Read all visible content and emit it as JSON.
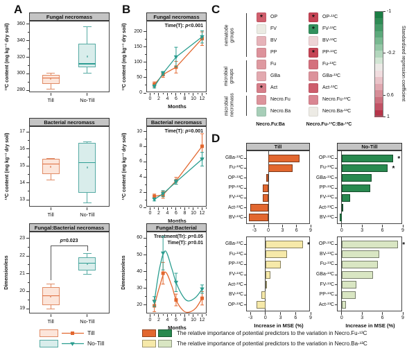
{
  "panels": {
    "a": "A",
    "b": "B",
    "c": "C",
    "d": "D"
  },
  "colors": {
    "title_bar_bg": "#c4c4c4",
    "line": {
      "Till": "#e2672f",
      "No-Till": "#2a9d8f"
    },
    "box": {
      "Till": {
        "fill": "#fce5da",
        "stroke": "#e08a64",
        "median": "#de6a3a"
      },
      "No-Till": {
        "fill": "#d9edeb",
        "stroke": "#55aaa3",
        "median": "#2f9e94"
      }
    }
  },
  "chart_data": [
    {
      "id": "a1",
      "type": "box",
      "title": "Fungal necromass",
      "ylabel": "¹³C content (mg kg⁻¹ dry soil)",
      "ylim": [
        277,
        363
      ],
      "yticks": [
        280,
        300,
        320,
        340,
        360
      ],
      "yminor": [
        290,
        310,
        330,
        350
      ],
      "categories": [
        "Till",
        "No-Till"
      ],
      "boxes": [
        {
          "lo": 282,
          "q1": 288,
          "med": 295,
          "q3": 298.5,
          "hi": 301,
          "mean": 293.5
        },
        {
          "lo": 301,
          "q1": 308,
          "med": 312,
          "q3": 336,
          "hi": 357,
          "mean": 321
        }
      ]
    },
    {
      "id": "a2",
      "type": "box",
      "title": "Bacterial necromass",
      "ylabel": "¹³C content (mg kg⁻¹ dry soil)",
      "ylim": [
        12.55,
        17.3
      ],
      "yticks": [
        13,
        14,
        15,
        16,
        17
      ],
      "yminor": [
        13.5,
        14.5,
        15.5,
        16.5
      ],
      "categories": [
        "Till",
        "No-Till"
      ],
      "boxes": [
        {
          "lo": 14.15,
          "q1": 14.5,
          "med": 15.1,
          "q3": 15.4,
          "hi": 15.45,
          "mean": 14.95
        },
        {
          "lo": 12.8,
          "q1": 13.4,
          "med": 15.2,
          "q3": 16.35,
          "hi": 16.4,
          "mean": 14.9
        }
      ]
    },
    {
      "id": "a3",
      "type": "box",
      "title": "Fungal:Bacterial necromass",
      "ylabel": "Dimensionless",
      "ylim": [
        18.7,
        23.35
      ],
      "yticks": [
        19,
        20,
        21,
        22,
        23
      ],
      "yminor": [
        19.5,
        20.5,
        21.5,
        22.5
      ],
      "categories": [
        "Till",
        "No-Till"
      ],
      "boxes": [
        {
          "lo": 19.0,
          "q1": 19.2,
          "med": 19.75,
          "q3": 20.25,
          "hi": 20.4,
          "mean": 19.7
        },
        {
          "lo": 20.95,
          "q1": 21.2,
          "med": 21.6,
          "q3": 21.95,
          "hi": 22.15,
          "mean": 21.55
        }
      ],
      "bracket": {
        "p": "p",
        "val": "=0.023",
        "y": 22.6,
        "left_drop": 20.65,
        "right_drop": 22.3
      }
    },
    {
      "id": "b1",
      "type": "line",
      "title": "Fungal necromass",
      "xlabel": "Months",
      "ylabel": "¹³C content (mg kg⁻¹ dry soil)",
      "xlim": [
        -0.7,
        13.2
      ],
      "xticks": [
        0,
        2,
        4,
        6,
        8,
        10,
        12
      ],
      "xminor": [
        1,
        3,
        5,
        7,
        9,
        11,
        13
      ],
      "ylim": [
        0,
        233
      ],
      "yticks": [
        0,
        50,
        100,
        150,
        200
      ],
      "yminor": [
        25,
        75,
        125,
        175
      ],
      "stats": [
        {
          "pre": "Time(T): ",
          "p": "p",
          "val": "<0.001"
        }
      ],
      "series": [
        {
          "name": "Till",
          "marker": "square",
          "x": [
            1,
            3,
            6,
            12
          ],
          "y": [
            28,
            60,
            84,
            177
          ],
          "err": [
            8,
            9,
            19,
            22
          ]
        },
        {
          "name": "No-Till",
          "marker": "triangle",
          "x": [
            1,
            3,
            6,
            12
          ],
          "y": [
            21,
            64,
            117,
            183
          ],
          "err": [
            5,
            6,
            32,
            20
          ]
        }
      ]
    },
    {
      "id": "b2",
      "type": "line",
      "title": "Bacterial necromass",
      "xlabel": "Months",
      "ylabel": "¹³C content (mg kg⁻¹ dry soil)",
      "xlim": [
        -0.7,
        13.2
      ],
      "xticks": [
        0,
        2,
        4,
        6,
        8,
        10,
        12
      ],
      "xminor": [
        1,
        3,
        5,
        7,
        9,
        11,
        13
      ],
      "ylim": [
        0,
        10.6
      ],
      "yticks": [
        0,
        2,
        4,
        6,
        8,
        10
      ],
      "yminor": [
        1,
        3,
        5,
        7,
        9
      ],
      "stats": [
        {
          "pre": "Time(T): ",
          "p": "p",
          "val": "=0.001"
        }
      ],
      "series": [
        {
          "name": "Till",
          "marker": "square",
          "x": [
            1,
            3,
            6,
            12
          ],
          "y": [
            1.45,
            1.65,
            3.5,
            8.05
          ],
          "err": [
            0.3,
            0.45,
            0.45,
            1.65
          ]
        },
        {
          "name": "No-Till",
          "marker": "triangle",
          "x": [
            1,
            3,
            6,
            12
          ],
          "y": [
            1.05,
            1.8,
            3.35,
            6.35
          ],
          "err": [
            0.2,
            0.4,
            0.3,
            0.9
          ]
        }
      ]
    },
    {
      "id": "b3",
      "type": "line",
      "title": "Fungal:Bacterial necromass",
      "xlabel": "Months",
      "ylabel": "Dimensionless",
      "smooth": true,
      "xlim": [
        -0.7,
        13.2
      ],
      "xticks": [
        0,
        2,
        4,
        6,
        8,
        10,
        12
      ],
      "xminor": [
        1,
        3,
        5,
        7,
        9,
        11,
        13
      ],
      "ylim": [
        14.5,
        63.5
      ],
      "yticks": [
        20,
        30,
        40,
        50,
        60
      ],
      "yminor": [
        25,
        35,
        45,
        55
      ],
      "stats": [
        {
          "pre": "Treatment(Tr): ",
          "p": "p",
          "val": "=0.05"
        },
        {
          "pre": "Time(T): ",
          "p": "p",
          "val": "=0.01"
        }
      ],
      "series": [
        {
          "name": "Till",
          "marker": "square",
          "x": [
            1,
            3,
            6,
            12
          ],
          "y": [
            19.5,
            39,
            23,
            24
          ],
          "err": [
            3.5,
            6.5,
            3.5,
            4
          ],
          "curve": [
            [
              1,
              19.5
            ],
            [
              2.2,
              31
            ],
            [
              3.5,
              39.7
            ],
            [
              5,
              31.5
            ],
            [
              6,
              23
            ],
            [
              7.5,
              17
            ],
            [
              8.8,
              15.6
            ],
            [
              10.5,
              18
            ],
            [
              12,
              24
            ]
          ]
        },
        {
          "name": "No-Till",
          "marker": "triangle",
          "x": [
            1,
            3,
            6,
            12
          ],
          "y": [
            22,
            51,
            33.5,
            29.5
          ],
          "err": [
            3,
            10,
            5.5,
            2.5
          ],
          "curve": [
            [
              1,
              22
            ],
            [
              2.2,
              42
            ],
            [
              3.5,
              52.4
            ],
            [
              5,
              42
            ],
            [
              6,
              33.5
            ],
            [
              7.5,
              25.5
            ],
            [
              8.8,
              22.4
            ],
            [
              10.5,
              24.5
            ],
            [
              12,
              29.5
            ]
          ]
        }
      ]
    },
    {
      "id": "c",
      "type": "heatmap",
      "groups": [
        {
          "label": "nematode\ngroups",
          "rows": [
            0,
            3
          ]
        },
        {
          "label": "microbial\ngroups",
          "rows": [
            4,
            6
          ]
        },
        {
          "label": "microbial\nnecromass",
          "rows": [
            7,
            8
          ]
        }
      ],
      "columns": [
        {
          "footer": "Necro.Fu:Ba",
          "cells": [
            {
              "label": "OP",
              "color": "#d05f6d",
              "star": true
            },
            {
              "label": "FV",
              "color": "#ebebe3",
              "star": false
            },
            {
              "label": "BV",
              "color": "#e6b3b9",
              "star": false
            },
            {
              "label": "PP",
              "color": "#dd929b",
              "star": false
            },
            {
              "label": "Fu",
              "color": "#de99a0",
              "star": false
            },
            {
              "label": "GBa",
              "color": "#e2a9af",
              "star": false
            },
            {
              "label": "Act",
              "color": "#d67e89",
              "star": true
            },
            {
              "label": "Necro.Fu",
              "color": "#dc939b",
              "star": false
            },
            {
              "label": "Necro.Ba",
              "color": "#a7ceb8",
              "star": false
            }
          ]
        },
        {
          "footer": "Necro.Fu-¹³C:Ba-¹³C",
          "cells": [
            {
              "label": "OP-¹³C",
              "color": "#c54455",
              "star": true
            },
            {
              "label": "FV-¹³C",
              "color": "#33905d",
              "star": true
            },
            {
              "label": "BV-¹³C",
              "color": "#eed4d6",
              "star": false
            },
            {
              "label": "PP-¹³C",
              "color": "#c54455",
              "star": true
            },
            {
              "label": "Fu-¹³C",
              "color": "#d4707d",
              "star": false
            },
            {
              "label": "GBa-¹³C",
              "color": "#dc929b",
              "star": false
            },
            {
              "label": "Act-¹³C",
              "color": "#cd5d6c",
              "star": false
            },
            {
              "label": "Necro.Fu-¹³C",
              "color": "#d98692",
              "star": false
            },
            {
              "label": "Necro.Ba-¹³C",
              "color": "#edebe5",
              "star": false
            }
          ]
        }
      ],
      "colorbar": {
        "label": "Standardized regression coefficient",
        "colors": [
          "#1b7e44",
          "#2f8b55",
          "#459a68",
          "#5ca97b",
          "#78b890",
          "#95c7a6",
          "#b3d6bd",
          "#d2e5d4",
          "#ece9e6",
          "#f0dcde",
          "#e9c3c8",
          "#e0a8b0",
          "#d68d97",
          "#cc707e",
          "#c15265",
          "#b73449"
        ],
        "ticks": [
          {
            "v": "-1",
            "pos": 0
          },
          {
            "v": "-0.2",
            "pos": 0.4
          },
          {
            "v": "0.6",
            "pos": 0.8
          },
          {
            "v": "1",
            "pos": 1
          }
        ]
      }
    },
    {
      "id": "d1",
      "type": "hbar",
      "title": "Till",
      "color": "#e2672f",
      "xlim": [
        -4.6,
        9
      ],
      "xticks": [
        -3,
        0,
        3,
        6,
        9
      ],
      "categories": [
        "GBa-¹³C",
        "Fu-¹³C",
        "OP-¹³C",
        "PP-¹³C",
        "FV-¹³C",
        "Act-¹³C",
        "BV-¹³C"
      ],
      "values": [
        6.7,
        5.1,
        -0.5,
        -1.2,
        -1.2,
        -3.9,
        -4.2
      ],
      "stars": [
        false,
        false,
        false,
        false,
        false,
        false,
        false
      ]
    },
    {
      "id": "d2",
      "type": "hbar",
      "title": "No-Till",
      "color": "#28894f",
      "xlim": [
        -0.6,
        9
      ],
      "xticks": [
        0,
        3,
        6,
        9
      ],
      "categories": [
        "OP-¹³C",
        "Fu-¹³C",
        "GBa-¹³C",
        "PP-¹³C",
        "FV-¹³C",
        "Act-¹³C",
        "BV-¹³C"
      ],
      "values": [
        7.6,
        6.8,
        4.4,
        4.2,
        1.2,
        0.05,
        -0.3
      ],
      "stars": [
        true,
        true,
        false,
        false,
        false,
        false,
        false
      ]
    },
    {
      "id": "d3",
      "type": "hbar",
      "title": null,
      "color": "#f6e9a9",
      "xlabel": "Increase in MSE (%)",
      "xlim": [
        -3.7,
        9
      ],
      "xticks": [
        -3,
        0,
        3,
        6,
        9
      ],
      "categories": [
        "GBa-¹³C",
        "Fu-¹³C",
        "PP-¹³C",
        "FV-¹³C",
        "Act-¹³C",
        "BV-¹³C",
        "OP-¹³C"
      ],
      "values": [
        7.5,
        4.3,
        3.1,
        1.0,
        0.2,
        -0.8,
        -1.8
      ],
      "stars": [
        true,
        false,
        false,
        false,
        false,
        false,
        false
      ]
    },
    {
      "id": "d4",
      "type": "hbar",
      "title": null,
      "color": "#d9e6c3",
      "xlabel": "Increase in MSE (%)",
      "xlim": [
        -0.6,
        9
      ],
      "xticks": [
        0,
        3,
        6,
        9
      ],
      "categories": [
        "OP-¹³C",
        "BV-¹³C",
        "Fu-¹³C",
        "GBa-¹³C",
        "FV-¹³C",
        "PP-¹³C",
        "Act-¹³C"
      ],
      "values": [
        8.3,
        5.5,
        5.3,
        4.6,
        2.2,
        2.1,
        0.6
      ],
      "stars": [
        true,
        false,
        false,
        false,
        false,
        false,
        false
      ]
    }
  ],
  "legend_boxline": {
    "items": [
      {
        "label": "Till",
        "fill": "#fce5da",
        "stroke": "#e08a64",
        "line": "#e2672f",
        "marker": "square"
      },
      {
        "label": "No-Till",
        "fill": "#d9edeb",
        "stroke": "#55aaa3",
        "line": "#2a9d8f",
        "marker": "triangle"
      }
    ]
  },
  "legend_importance": {
    "rows": [
      {
        "colors": [
          "#e2672f",
          "#28894f"
        ],
        "text": "The relative importance of potential predictors to the variation in Necro.Fu-¹³C"
      },
      {
        "colors": [
          "#f6e9a9",
          "#d9e6c3"
        ],
        "text": "The relative importance of potential predictors to the variation in Necro.Ba-¹³C"
      }
    ]
  }
}
